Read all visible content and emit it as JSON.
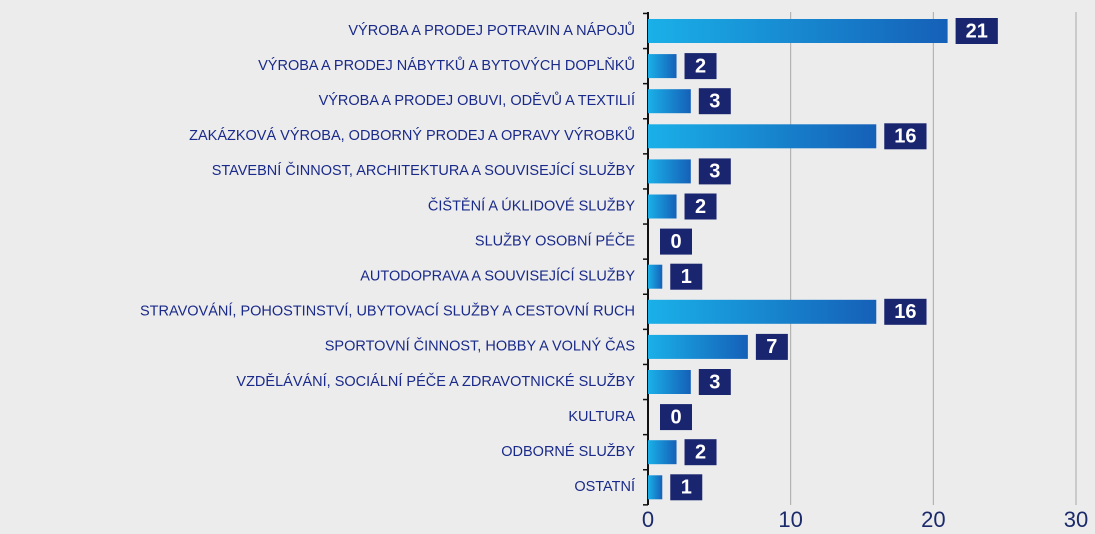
{
  "chart_data": {
    "type": "bar",
    "orientation": "horizontal",
    "categories": [
      "VÝROBA A PRODEJ POTRAVIN A NÁPOJŮ",
      "VÝROBA A PRODEJ NÁBYTKŮ A BYTOVÝCH DOPLŇKŮ",
      "VÝROBA A PRODEJ OBUVI, ODĚVŮ A TEXTILIÍ",
      "ZAKÁZKOVÁ VÝROBA, ODBORNÝ PRODEJ A OPRAVY VÝROBKŮ",
      "STAVEBNÍ ČINNOST, ARCHITEKTURA A SOUVISEJÍCÍ SLUŽBY",
      "ČIŠTĚNÍ A ÚKLIDOVÉ SLUŽBY",
      "SLUŽBY OSOBNÍ PÉČE",
      "AUTODOPRAVA A SOUVISEJÍCÍ SLUŽBY",
      "STRAVOVÁNÍ, POHOSTINSTVÍ, UBYTOVACÍ SLUŽBY A CESTOVNÍ RUCH",
      "SPORTOVNÍ ČINNOST, HOBBY A VOLNÝ ČAS",
      "VZDĚLÁVÁNÍ, SOCIÁLNÍ PÉČE A ZDRAVOTNICKÉ SLUŽBY",
      "KULTURA",
      "ODBORNÉ SLUŽBY",
      "OSTATNÍ"
    ],
    "values": [
      21,
      2,
      3,
      16,
      3,
      2,
      0,
      1,
      16,
      7,
      3,
      0,
      2,
      1
    ],
    "color": "#1a8fd8",
    "xlim": [
      0,
      30
    ],
    "xticks": [
      0,
      10,
      20,
      30
    ],
    "grid": true
  }
}
